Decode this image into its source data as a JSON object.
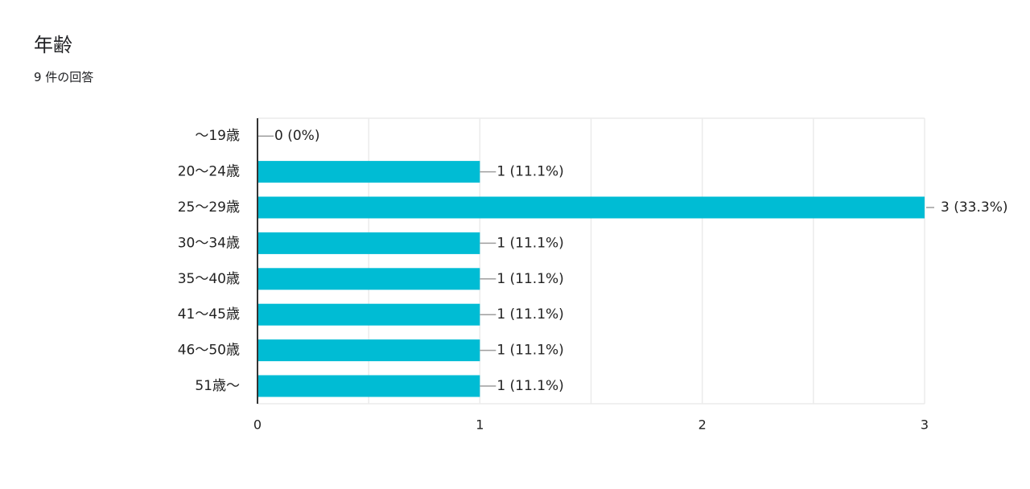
{
  "question": {
    "title": "年齢",
    "response_count": "9 件の回答"
  },
  "colors": {
    "bar": "#00bcd4",
    "grid": "#ebebeb",
    "axis": "#333333",
    "leader": "#9e9e9e",
    "text": "#222222"
  },
  "chart_data": {
    "type": "bar",
    "orientation": "horizontal",
    "categories": [
      "～19歳",
      "20～24歳",
      "25～29歳",
      "30～34歳",
      "35～40歳",
      "41～45歳",
      "46～50歳",
      "51歳～"
    ],
    "values": [
      0,
      1,
      3,
      1,
      1,
      1,
      1,
      1
    ],
    "value_labels": [
      "0 (0%)",
      "1 (11.1%)",
      "3 (33.3%)",
      "1 (11.1%)",
      "1 (11.1%)",
      "1 (11.1%)",
      "1 (11.1%)",
      "1 (11.1%)"
    ],
    "x_ticks": [
      "0",
      "1",
      "2",
      "3"
    ],
    "xlim": [
      0,
      3
    ],
    "grid": true
  }
}
